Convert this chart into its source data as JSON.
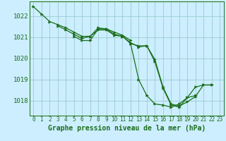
{
  "background_color": "#cceeff",
  "grid_color": "#99cccc",
  "line_color": "#1a6e1a",
  "marker_color": "#1a6e1a",
  "xlabel": "Graphe pression niveau de la mer (hPa)",
  "xlabel_fontsize": 7,
  "xtick_fontsize": 5.5,
  "ytick_fontsize": 6.5,
  "xlim": [
    -0.5,
    23.5
  ],
  "ylim": [
    1017.3,
    1022.7
  ],
  "yticks": [
    1018,
    1019,
    1020,
    1021,
    1022
  ],
  "xticks": [
    0,
    1,
    2,
    3,
    4,
    5,
    6,
    7,
    8,
    9,
    10,
    11,
    12,
    13,
    14,
    15,
    16,
    17,
    18,
    19,
    20,
    21,
    22,
    23
  ],
  "series": [
    [
      1022.45,
      1022.1,
      1021.75,
      1021.6,
      1021.45,
      1021.25,
      1021.05,
      1021.05,
      1021.35,
      1021.35,
      1021.1,
      1021.05,
      1020.7,
      1019.0,
      1018.25,
      1017.85,
      1017.8,
      1017.7,
      1017.85,
      1018.15,
      1018.65,
      1018.75,
      1018.75,
      null
    ],
    [
      null,
      null,
      null,
      1021.55,
      1021.35,
      1021.15,
      1020.95,
      1021.05,
      1021.45,
      1021.4,
      1021.15,
      1021.05,
      1020.75,
      1020.55,
      1020.6,
      1019.95,
      1018.65,
      1017.85,
      1017.75,
      1017.95,
      1018.2,
      1018.75,
      1018.75,
      null
    ],
    [
      null,
      null,
      null,
      null,
      null,
      1021.05,
      1020.85,
      1020.85,
      1021.4,
      1021.4,
      1021.25,
      1021.1,
      1020.85,
      null,
      null,
      null,
      null,
      null,
      null,
      null,
      null,
      null,
      null,
      null
    ],
    [
      null,
      null,
      null,
      null,
      null,
      null,
      null,
      null,
      null,
      null,
      null,
      null,
      1020.7,
      1020.6,
      1020.6,
      1019.85,
      1018.6,
      1017.8,
      1017.7,
      1018.15,
      1018.25,
      null,
      null,
      null
    ]
  ]
}
